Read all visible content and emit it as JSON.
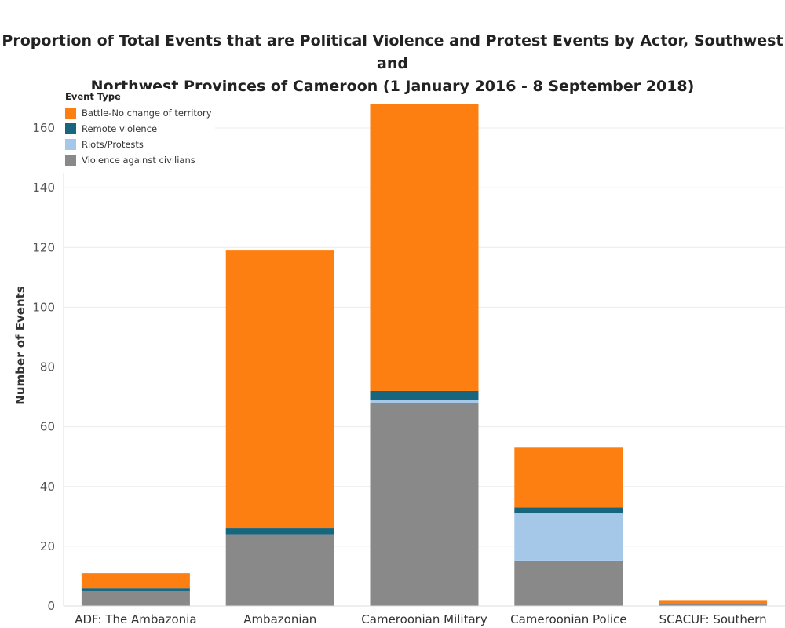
{
  "chart_data": {
    "type": "bar",
    "stacked": true,
    "title_lines": [
      "Proportion of Total Events that are Political Violence and Protest Events by Actor, Southwest and",
      "Northwest Provinces of Cameroon (1 January 2016 - 8 September 2018)"
    ],
    "xlabel": "",
    "ylabel": "Number of Events",
    "ylim": [
      0,
      170
    ],
    "yticks": [
      0,
      20,
      40,
      60,
      80,
      100,
      120,
      140,
      160
    ],
    "grid": true,
    "categories": [
      "ADF: The Ambazonia",
      "Ambazonian",
      "Cameroonian Military",
      "Cameroonian Police",
      "SCACUF: Southern"
    ],
    "legend": {
      "title": "Event Type",
      "position": "top-left"
    },
    "series": [
      {
        "name": "Violence against civilians",
        "color": "#898989",
        "values": [
          5,
          24,
          68,
          15,
          1
        ]
      },
      {
        "name": "Riots/Protests",
        "color": "#a5c8e8",
        "values": [
          0,
          0,
          1,
          16,
          0
        ]
      },
      {
        "name": "Remote violence",
        "color": "#17667e",
        "values": [
          1,
          2,
          3,
          2,
          0
        ]
      },
      {
        "name": "Battle-No change of territory",
        "color": "#fd7f12",
        "values": [
          5,
          93,
          96,
          20,
          1
        ]
      }
    ],
    "legend_order": [
      "Battle-No change of territory",
      "Remote violence",
      "Riots/Protests",
      "Violence against civilians"
    ]
  }
}
